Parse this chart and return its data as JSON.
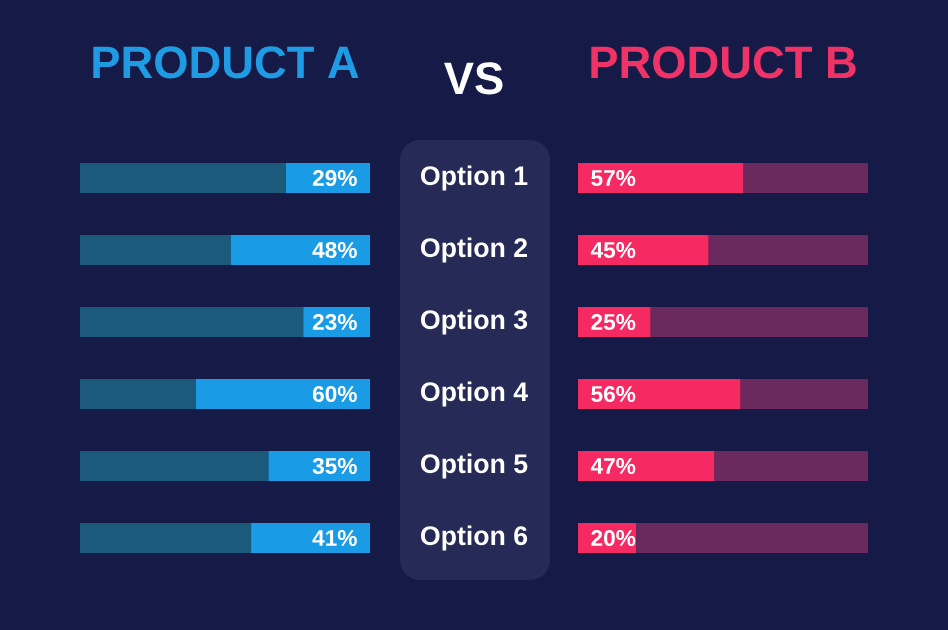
{
  "chart_data": [
    {
      "type": "bar",
      "orientation": "horizontal",
      "title": "PRODUCT A",
      "annotations": [
        "VS"
      ],
      "categories": [
        "Option 1",
        "Option 2",
        "Option 3",
        "Option 4",
        "Option 5",
        "Option 6"
      ],
      "xlim": [
        100,
        0
      ],
      "tick_labels": "y",
      "stacked": true,
      "series": [
        {
          "color": "#1a9be6",
          "values": [
            29,
            48,
            23,
            60,
            35,
            41
          ],
          "value_labels": [
            "29%",
            "48%",
            "23%",
            "60%",
            "35%",
            "41%"
          ]
        },
        {
          "color": "#1b5a7a",
          "values": [
            71,
            52,
            77,
            40,
            65,
            59
          ]
        }
      ]
    },
    {
      "type": "bar",
      "orientation": "horizontal",
      "title": "PRODUCT B",
      "xlim": [
        0,
        100
      ],
      "tick_labels": false,
      "stacked": true,
      "series": [
        {
          "color": "#f52a63",
          "values": [
            57,
            45,
            25,
            56,
            47,
            20
          ],
          "value_labels": [
            "57%",
            "45%",
            "25%",
            "56%",
            "47%",
            "20%"
          ]
        },
        {
          "color": "#6b2a5e",
          "values": [
            43,
            55,
            75,
            44,
            53,
            80
          ]
        }
      ]
    }
  ]
}
